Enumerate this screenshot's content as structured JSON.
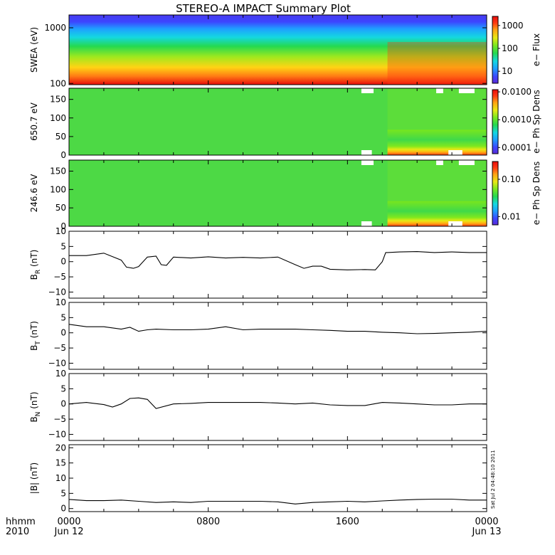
{
  "title": "STEREO-A IMPACT Summary Plot",
  "footer": {
    "left_top": "hhmm",
    "left_bottom": "2010",
    "stamp": "Sat Jul  2 04:48:10 2011"
  },
  "chart_data": [
    {
      "type": "heatmap",
      "panel": "SWEA",
      "ylabel": "SWEA (eV)",
      "ylog": true,
      "ylim": [
        95,
        1700
      ],
      "yticks": [
        {
          "v": 100,
          "label": "100"
        },
        {
          "v": 1000,
          "label": "1000"
        }
      ],
      "colorbar": {
        "label": "e− Flux",
        "log": true,
        "range": [
          3,
          2500
        ],
        "ticks": [
          {
            "v": 10,
            "label": "10"
          },
          {
            "v": 100,
            "label": "100"
          },
          {
            "v": 1000,
            "label": "1000"
          }
        ]
      },
      "colors": [
        "#5b2bd8",
        "#3c46ff",
        "#1ea0ff",
        "#14d8e0",
        "#25d94f",
        "#7fe81e",
        "#e8e814",
        "#ffa214",
        "#ff3a12",
        "#e80c0c"
      ],
      "description_levels": "low energy highest flux; step increase at ~18:20"
    },
    {
      "type": "heatmap",
      "panel": "PAD650",
      "ylabel": "650.7 eV",
      "ylim": [
        0,
        180
      ],
      "yticks": [
        {
          "v": 0,
          "label": "0"
        },
        {
          "v": 50,
          "label": "50"
        },
        {
          "v": 100,
          "label": "100"
        },
        {
          "v": 150,
          "label": "150"
        }
      ],
      "colorbar": {
        "label": "e− Ph Sp Dens",
        "log": true,
        "range": [
          6e-05,
          0.012
        ],
        "ticks": [
          {
            "v": 0.0001,
            "label": "0.0001"
          },
          {
            "v": 0.001,
            "label": "0.0010"
          },
          {
            "v": 0.01,
            "label": "0.0100"
          }
        ]
      }
    },
    {
      "type": "heatmap",
      "panel": "PAD246",
      "ylabel": "246.6 eV",
      "ylim": [
        0,
        180
      ],
      "yticks": [
        {
          "v": 0,
          "label": "0"
        },
        {
          "v": 50,
          "label": "50"
        },
        {
          "v": 100,
          "label": "100"
        },
        {
          "v": 150,
          "label": "150"
        }
      ],
      "colorbar": {
        "label": "e− Ph Sp Dens",
        "log": true,
        "range": [
          0.006,
          0.3
        ],
        "ticks": [
          {
            "v": 0.01,
            "label": "0.01"
          },
          {
            "v": 0.1,
            "label": "0.10"
          }
        ]
      }
    },
    {
      "type": "line",
      "panel": "BR",
      "ylabel_main": "B",
      "ylabel_sub": "R",
      "ylabel_unit": " (nT)",
      "ylim": [
        -12,
        10
      ],
      "yticks": [
        {
          "v": -10,
          "label": "−10"
        },
        {
          "v": -5,
          "label": "−5"
        },
        {
          "v": 0,
          "label": "0"
        },
        {
          "v": 5,
          "label": "5"
        },
        {
          "v": 10,
          "label": "10"
        }
      ],
      "x": [
        0,
        1,
        2,
        3,
        3.3,
        3.7,
        4,
        4.5,
        5,
        5.3,
        5.6,
        6,
        7,
        8,
        9,
        10,
        11,
        12,
        13,
        13.5,
        14,
        14.5,
        15,
        16,
        17,
        17.6,
        18,
        18.2,
        18.3,
        19,
        20,
        21,
        22,
        23,
        24
      ],
      "y": [
        2,
        2,
        2.8,
        0.5,
        -1.8,
        -2.2,
        -1.6,
        1.5,
        1.8,
        -1,
        -1.2,
        1.5,
        1.2,
        1.6,
        1.2,
        1.4,
        1.2,
        1.5,
        -1,
        -2.2,
        -1.5,
        -1.5,
        -2.5,
        -2.7,
        -2.6,
        -2.7,
        0,
        3,
        3,
        3.2,
        3.3,
        3,
        3.2,
        3,
        3
      ]
    },
    {
      "type": "line",
      "panel": "BT",
      "ylabel_main": "B",
      "ylabel_sub": "T",
      "ylabel_unit": " (nT)",
      "ylim": [
        -12,
        10
      ],
      "yticks": [
        {
          "v": -10,
          "label": "−10"
        },
        {
          "v": -5,
          "label": "−5"
        },
        {
          "v": 0,
          "label": "0"
        },
        {
          "v": 5,
          "label": "5"
        },
        {
          "v": 10,
          "label": "10"
        }
      ],
      "x": [
        0,
        1,
        2,
        3,
        3.5,
        4,
        4.5,
        5,
        6,
        7,
        8,
        9,
        10,
        11,
        12,
        13,
        14,
        15,
        16,
        17,
        18,
        19,
        20,
        21,
        22,
        23,
        24
      ],
      "y": [
        2.8,
        2,
        2,
        1.2,
        1.8,
        0.5,
        1,
        1.2,
        1,
        1,
        1.2,
        2,
        1,
        1.2,
        1.2,
        1.2,
        1,
        0.8,
        0.5,
        0.5,
        0.2,
        0,
        -0.3,
        -0.2,
        0,
        0.2,
        0.5
      ]
    },
    {
      "type": "line",
      "panel": "BN",
      "ylabel_main": "B",
      "ylabel_sub": "N",
      "ylabel_unit": " (nT)",
      "ylim": [
        -12,
        10
      ],
      "yticks": [
        {
          "v": -10,
          "label": "−10"
        },
        {
          "v": -5,
          "label": "−5"
        },
        {
          "v": 0,
          "label": "0"
        },
        {
          "v": 5,
          "label": "5"
        },
        {
          "v": 10,
          "label": "10"
        }
      ],
      "x": [
        0,
        1,
        2,
        2.5,
        3,
        3.5,
        4,
        4.5,
        5,
        6,
        7,
        8,
        9,
        10,
        11,
        12,
        13,
        14,
        15,
        16,
        17,
        18,
        19,
        20,
        21,
        22,
        23,
        24
      ],
      "y": [
        0,
        0.5,
        -0.2,
        -1,
        0,
        1.8,
        2,
        1.5,
        -1.5,
        0,
        0.2,
        0.5,
        0.5,
        0.5,
        0.5,
        0.3,
        0,
        0.3,
        -0.3,
        -0.5,
        -0.5,
        0.5,
        0.3,
        0,
        -0.3,
        -0.3,
        0,
        0
      ]
    },
    {
      "type": "line",
      "panel": "B",
      "ylabel_main": "|B|",
      "ylabel_sub": "",
      "ylabel_unit": " (nT)",
      "ylim": [
        -1,
        21
      ],
      "yticks": [
        {
          "v": 0,
          "label": "0"
        },
        {
          "v": 5,
          "label": "5"
        },
        {
          "v": 10,
          "label": "10"
        },
        {
          "v": 15,
          "label": "15"
        },
        {
          "v": 20,
          "label": "20"
        }
      ],
      "x": [
        0,
        1,
        2,
        3,
        4,
        5,
        6,
        7,
        8,
        9,
        10,
        11,
        12,
        13,
        14,
        15,
        16,
        17,
        18,
        19,
        20,
        21,
        22,
        23,
        24
      ],
      "y": [
        3,
        2.6,
        2.6,
        2.8,
        2.4,
        2,
        2.2,
        2,
        2.4,
        2.4,
        2.4,
        2.4,
        2.2,
        1.5,
        2,
        2.2,
        2.4,
        2.2,
        2.5,
        2.8,
        3,
        3.1,
        3.1,
        2.8,
        2.8
      ]
    }
  ],
  "xaxis": {
    "ticks": [
      {
        "hours": 0,
        "top": "0000",
        "bottom": "Jun 12"
      },
      {
        "hours": 8,
        "top": "0800",
        "bottom": ""
      },
      {
        "hours": 16,
        "top": "1600",
        "bottom": ""
      },
      {
        "hours": 24,
        "top": "0000",
        "bottom": "Jun 13"
      }
    ],
    "range": [
      0,
      24
    ]
  }
}
